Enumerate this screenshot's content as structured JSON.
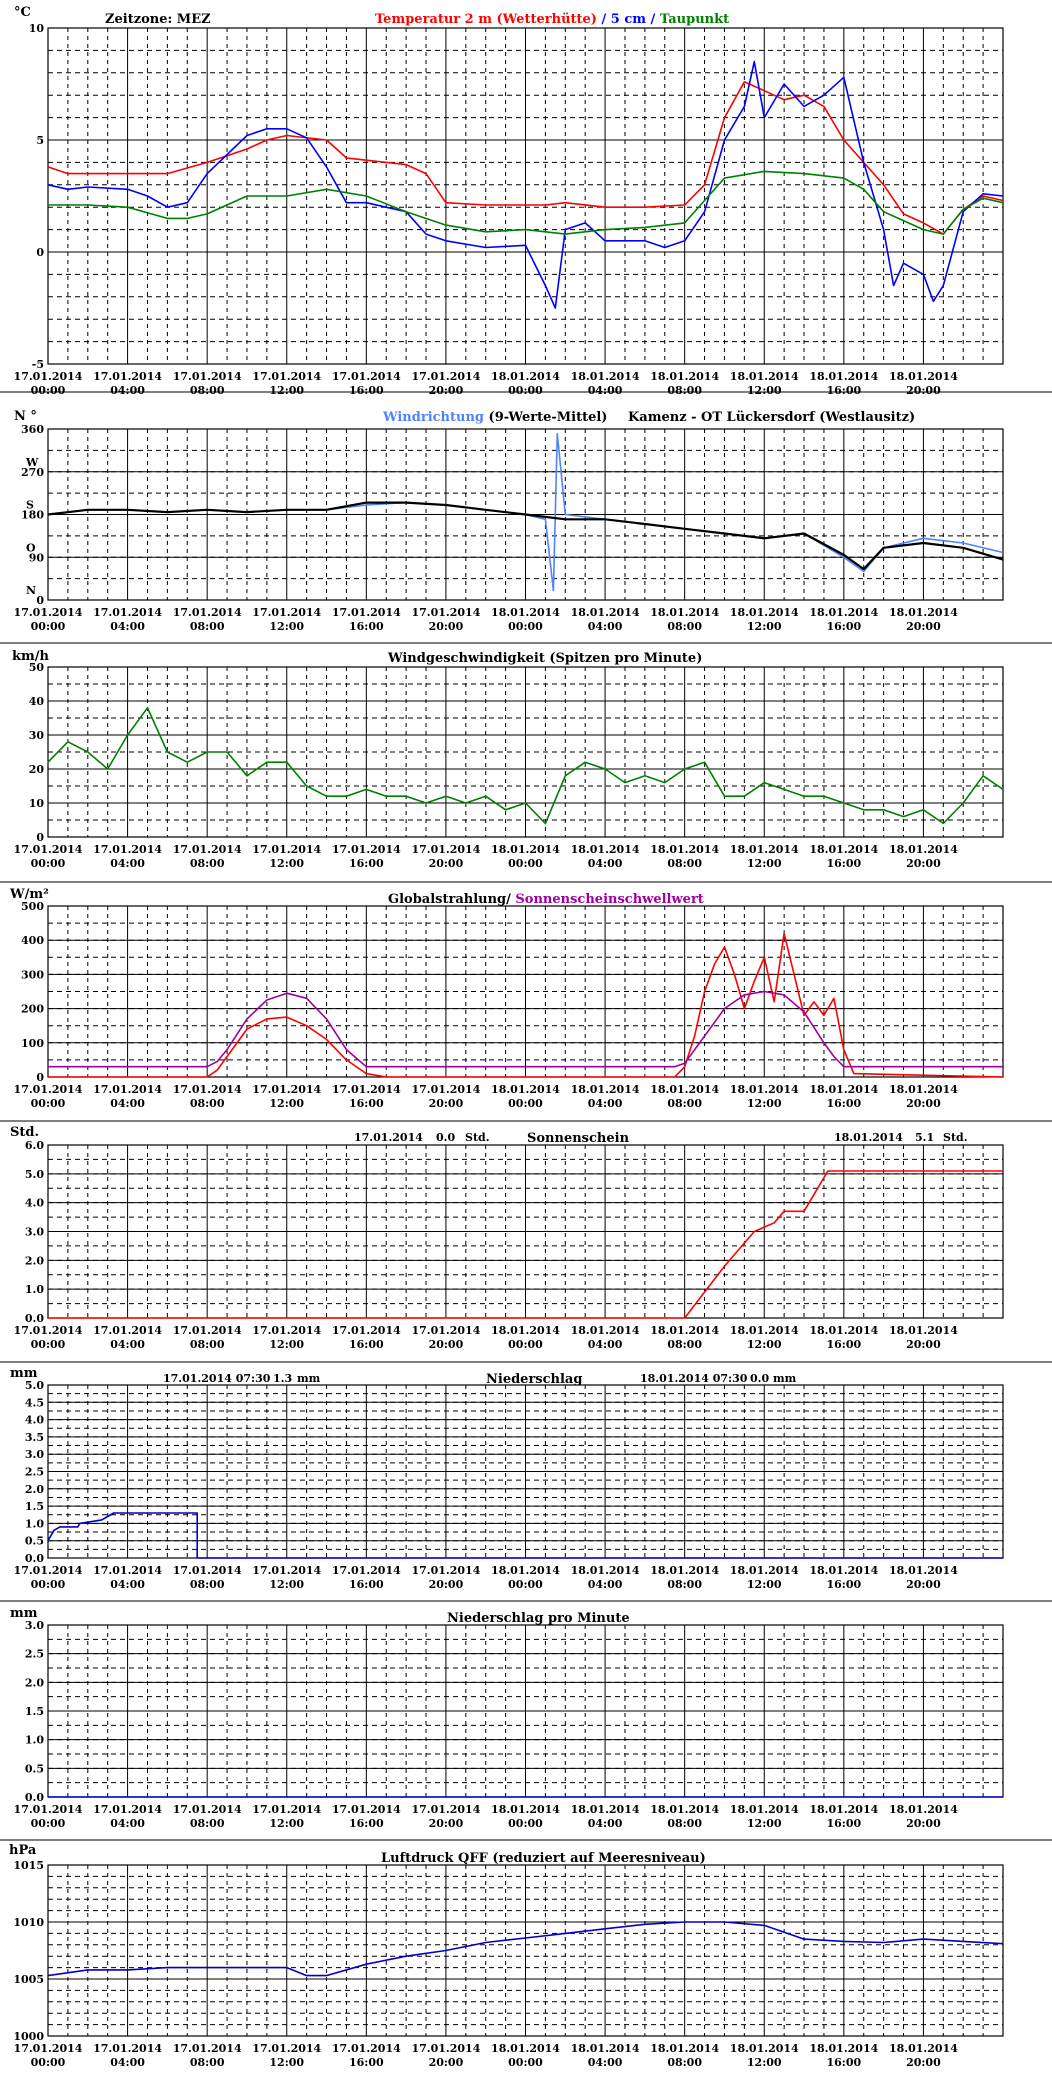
{
  "x_ticks": [
    {
      "date": "17.01.2014",
      "time": "00:00"
    },
    {
      "date": "17.01.2014",
      "time": "04:00"
    },
    {
      "date": "17.01.2014",
      "time": "08:00"
    },
    {
      "date": "17.01.2014",
      "time": "12:00"
    },
    {
      "date": "17.01.2014",
      "time": "16:00"
    },
    {
      "date": "17.01.2014",
      "time": "20:00"
    },
    {
      "date": "18.01.2014",
      "time": "00:00"
    },
    {
      "date": "18.01.2014",
      "time": "04:00"
    },
    {
      "date": "18.01.2014",
      "time": "08:00"
    },
    {
      "date": "18.01.2014",
      "time": "12:00"
    },
    {
      "date": "18.01.2014",
      "time": "16:00"
    },
    {
      "date": "18.01.2014",
      "time": "20:00"
    }
  ],
  "colors": {
    "grid": "#000000",
    "red": "#ff0000",
    "blue": "#0000ff",
    "green": "#008000",
    "windblue": "#4f83ff",
    "purple": "#a000a0",
    "navy": "#0000cc"
  },
  "panels": {
    "temp": {
      "unit": "°C",
      "zone_label": "Zeitzone: MEZ",
      "title_red": "Temperatur 2 m (Wetterhütte)",
      "title_sep": " / ",
      "title_blue": "5 cm",
      "title_sep2": " / ",
      "title_green": "Taupunkt",
      "y_ticks": [
        "10",
        "5",
        "0",
        "-5"
      ]
    },
    "wdir": {
      "unit": "N °",
      "title_blue": "Windrichtung",
      "title_black": "(9-Werte-Mittel)",
      "station": "Kamenz - OT Lückersdorf (Westlausitz)",
      "y_ticks": [
        "360",
        "270",
        "180",
        "90",
        "0"
      ],
      "dir_labels": [
        "W",
        "S",
        "O",
        "N"
      ]
    },
    "wspeed": {
      "unit": "km/h",
      "title": "Windgeschwindigkeit (Spitzen pro Minute)",
      "y_ticks": [
        "50",
        "40",
        "30",
        "20",
        "10",
        "0"
      ]
    },
    "rad": {
      "unit": "W/m²",
      "title_black": "Globalstrahlung/",
      "title_purple": "Sonnenscheinschwellwert",
      "y_ticks": [
        "500",
        "400",
        "300",
        "200",
        "100",
        "0"
      ]
    },
    "sun": {
      "unit": "Std.",
      "title": "Sonnenschein",
      "date1": "17.01.2014",
      "val1": "0.0",
      "unit1": "Std.",
      "date2": "18.01.2014",
      "val2": "5.1",
      "unit2": "Std.",
      "y_ticks": [
        "6.0",
        "5.0",
        "4.0",
        "3.0",
        "2.0",
        "1.0",
        "0.0"
      ]
    },
    "precip": {
      "unit": "mm",
      "title": "Niederschlag",
      "date1": "17.01.2014 07:30",
      "val1": "1.3",
      "unit1": "mm",
      "date2": "18.01.2014 07:30",
      "val2": "0.0",
      "unit2": "mm",
      "y_ticks": [
        "5.0",
        "4.5",
        "4.0",
        "3.5",
        "3.0",
        "2.5",
        "2.0",
        "1.5",
        "1.0",
        "0.5",
        "0.0"
      ]
    },
    "precipmin": {
      "unit": "mm",
      "title": "Niederschlag pro Minute",
      "y_ticks": [
        "3.0",
        "2.5",
        "2.0",
        "1.5",
        "1.0",
        "0.5",
        "0.0"
      ]
    },
    "press": {
      "unit": "hPa",
      "title": "Luftdruck QFF (reduziert auf Meeresniveau)",
      "y_ticks": [
        "1015",
        "1010",
        "1005",
        "1000"
      ]
    }
  },
  "chart_data": [
    {
      "type": "line",
      "title": "Temperatur 2 m (Wetterhütte) / 5 cm / Taupunkt",
      "ylabel": "°C",
      "x_unit": "hours since 17.01.2014 00:00",
      "xlim": [
        0,
        48
      ],
      "ylim": [
        -5,
        10
      ],
      "series": [
        {
          "name": "Temperatur 2 m (Wetterhütte)",
          "color": "#ff0000",
          "x": [
            0,
            1,
            2,
            4,
            6,
            8,
            10,
            11,
            12,
            14,
            15,
            16,
            18,
            19,
            20,
            22,
            24,
            25,
            26,
            28,
            30,
            32,
            33,
            34,
            35,
            36,
            37,
            38,
            39,
            40,
            41,
            42,
            43,
            44,
            45,
            46,
            47,
            48
          ],
          "y": [
            3.8,
            3.5,
            3.5,
            3.5,
            3.5,
            4.0,
            4.6,
            5.0,
            5.2,
            5.0,
            4.2,
            4.1,
            3.9,
            3.5,
            2.2,
            2.1,
            2.1,
            2.1,
            2.2,
            2.0,
            2.0,
            2.1,
            3.0,
            6.0,
            7.6,
            7.2,
            6.8,
            7.0,
            6.5,
            5.0,
            4.0,
            3.0,
            1.7,
            1.3,
            0.8,
            1.9,
            2.5,
            2.3
          ]
        },
        {
          "name": "5 cm",
          "color": "#0000ff",
          "x": [
            0,
            1,
            2,
            4,
            5,
            6,
            7,
            8,
            10,
            11,
            12,
            13,
            14,
            15,
            16,
            18,
            19,
            20,
            22,
            24,
            25,
            25.5,
            26,
            27,
            28,
            30,
            31,
            32,
            33,
            34,
            35,
            35.5,
            36,
            37,
            38,
            39,
            40,
            41,
            42,
            42.5,
            43,
            44,
            44.5,
            45,
            46,
            47,
            48
          ],
          "y": [
            3.0,
            2.8,
            2.9,
            2.8,
            2.5,
            2.0,
            2.2,
            3.5,
            5.2,
            5.5,
            5.5,
            5.1,
            3.8,
            2.2,
            2.2,
            1.8,
            0.8,
            0.5,
            0.2,
            0.3,
            -1.5,
            -2.5,
            1.0,
            1.3,
            0.5,
            0.5,
            0.2,
            0.5,
            1.8,
            5.0,
            6.5,
            8.5,
            6.0,
            7.5,
            6.5,
            7.0,
            7.8,
            4.0,
            1.0,
            -1.5,
            -0.5,
            -1.0,
            -2.2,
            -1.5,
            1.8,
            2.6,
            2.5
          ]
        },
        {
          "name": "Taupunkt",
          "color": "#008000",
          "x": [
            0,
            2,
            4,
            6,
            7,
            8,
            10,
            12,
            14,
            16,
            18,
            20,
            22,
            24,
            26,
            28,
            30,
            32,
            33,
            34,
            36,
            38,
            40,
            41,
            42,
            44,
            45,
            46,
            47,
            48
          ],
          "y": [
            2.1,
            2.1,
            2.0,
            1.5,
            1.5,
            1.7,
            2.5,
            2.5,
            2.8,
            2.5,
            1.8,
            1.2,
            0.9,
            1.0,
            0.8,
            1.0,
            1.1,
            1.3,
            2.3,
            3.3,
            3.6,
            3.5,
            3.3,
            2.8,
            1.8,
            1.0,
            0.8,
            1.9,
            2.4,
            2.2
          ]
        }
      ]
    },
    {
      "type": "line",
      "title": "Windrichtung (9-Werte-Mittel)",
      "ylabel": "°",
      "x_unit": "hours since 17.01.2014 00:00",
      "xlim": [
        0,
        48
      ],
      "ylim": [
        0,
        360
      ],
      "series": [
        {
          "name": "Windrichtung",
          "color": "#4f83ff",
          "x": [
            0,
            2,
            4,
            6,
            8,
            10,
            12,
            14,
            16,
            18,
            20,
            22,
            24,
            25,
            25.4,
            25.6,
            26,
            28,
            30,
            32,
            34,
            36,
            38,
            40,
            41,
            42,
            44,
            46,
            48
          ],
          "y": [
            180,
            190,
            190,
            185,
            190,
            185,
            190,
            190,
            200,
            205,
            200,
            190,
            180,
            170,
            20,
            350,
            180,
            170,
            160,
            150,
            140,
            130,
            140,
            90,
            60,
            110,
            130,
            120,
            100
          ]
        },
        {
          "name": "(9-Werte-Mittel)",
          "color": "#000000",
          "x": [
            0,
            2,
            4,
            6,
            8,
            10,
            12,
            14,
            16,
            18,
            20,
            22,
            24,
            25,
            26,
            28,
            30,
            32,
            34,
            36,
            38,
            40,
            41,
            42,
            44,
            46,
            48
          ],
          "y": [
            180,
            190,
            190,
            185,
            190,
            185,
            190,
            190,
            205,
            205,
            200,
            190,
            180,
            175,
            170,
            170,
            160,
            150,
            140,
            130,
            140,
            95,
            65,
            110,
            120,
            110,
            85
          ]
        }
      ]
    },
    {
      "type": "line",
      "title": "Windgeschwindigkeit (Spitzen pro Minute)",
      "ylabel": "km/h",
      "x_unit": "hours since 17.01.2014 00:00",
      "xlim": [
        0,
        48
      ],
      "ylim": [
        0,
        50
      ],
      "series": [
        {
          "name": "Windgeschwindigkeit",
          "color": "#008000",
          "x": [
            0,
            1,
            2,
            3,
            4,
            5,
            6,
            7,
            8,
            9,
            10,
            11,
            12,
            13,
            14,
            15,
            16,
            17,
            18,
            19,
            20,
            21,
            22,
            23,
            24,
            25,
            26,
            27,
            28,
            29,
            30,
            31,
            32,
            33,
            34,
            35,
            36,
            37,
            38,
            39,
            40,
            41,
            42,
            43,
            44,
            45,
            46,
            47,
            48
          ],
          "y": [
            22,
            28,
            25,
            20,
            30,
            38,
            25,
            22,
            25,
            25,
            18,
            22,
            22,
            15,
            12,
            12,
            14,
            12,
            12,
            10,
            12,
            10,
            12,
            8,
            10,
            4,
            18,
            22,
            20,
            16,
            18,
            16,
            20,
            22,
            12,
            12,
            16,
            14,
            12,
            12,
            10,
            8,
            8,
            6,
            8,
            4,
            10,
            18,
            14
          ]
        }
      ]
    },
    {
      "type": "line",
      "title": "Globalstrahlung/ Sonnenscheinschwellwert",
      "ylabel": "W/m²",
      "x_unit": "hours since 17.01.2014 00:00",
      "xlim": [
        0,
        48
      ],
      "ylim": [
        0,
        500
      ],
      "series": [
        {
          "name": "Globalstrahlung",
          "color": "#ff0000",
          "x": [
            0,
            8,
            8.5,
            9,
            10,
            11,
            12,
            13,
            14,
            15,
            16,
            17,
            31.5,
            32,
            32.5,
            33,
            33.5,
            34,
            34.5,
            35,
            35.5,
            36,
            36.5,
            37,
            37.5,
            38,
            38.5,
            39,
            39.5,
            40,
            40.5,
            48
          ],
          "y": [
            0,
            0,
            20,
            60,
            140,
            170,
            175,
            150,
            110,
            50,
            10,
            0,
            0,
            30,
            120,
            250,
            330,
            380,
            300,
            200,
            280,
            350,
            220,
            420,
            300,
            180,
            220,
            180,
            230,
            80,
            10,
            0
          ]
        },
        {
          "name": "Sonnenscheinschwellwert",
          "color": "#a000a0",
          "x": [
            0,
            8,
            8.5,
            9,
            10,
            11,
            12,
            13,
            14,
            15,
            16,
            31.5,
            32,
            33,
            34,
            35,
            36,
            37,
            38,
            39,
            39.5,
            40,
            48
          ],
          "y": [
            30,
            30,
            45,
            80,
            170,
            225,
            245,
            230,
            170,
            80,
            30,
            30,
            40,
            120,
            200,
            240,
            250,
            240,
            190,
            100,
            60,
            30,
            30
          ]
        }
      ]
    },
    {
      "type": "line",
      "title": "Sonnenschein",
      "ylabel": "Std.",
      "x_unit": "hours since 17.01.2014 00:00",
      "xlim": [
        0,
        48
      ],
      "ylim": [
        0,
        6
      ],
      "series": [
        {
          "name": "Sonnenschein",
          "color": "#ff0000",
          "x": [
            0,
            32,
            34,
            35.5,
            36.5,
            37,
            38,
            39.2,
            40,
            48
          ],
          "y": [
            0,
            0,
            1.8,
            3.0,
            3.3,
            3.7,
            3.7,
            5.1,
            5.1,
            5.1
          ]
        }
      ]
    },
    {
      "type": "line",
      "title": "Niederschlag",
      "ylabel": "mm",
      "x_unit": "hours since 17.01.2014 00:00",
      "xlim": [
        0,
        48
      ],
      "ylim": [
        0,
        5
      ],
      "series": [
        {
          "name": "Niederschlag",
          "color": "#0000cc",
          "x": [
            0,
            0.3,
            0.6,
            1.5,
            1.6,
            2.7,
            3.0,
            3.3,
            7.5,
            7.5,
            48
          ],
          "y": [
            0.5,
            0.8,
            0.9,
            0.9,
            1.0,
            1.1,
            1.2,
            1.3,
            1.3,
            0,
            0
          ]
        }
      ]
    },
    {
      "type": "line",
      "title": "Niederschlag pro Minute",
      "ylabel": "mm",
      "x_unit": "hours since 17.01.2014 00:00",
      "xlim": [
        0,
        48
      ],
      "ylim": [
        0,
        3
      ],
      "series": [
        {
          "name": "Niederschlag pro Minute",
          "color": "#0000cc",
          "x": [
            0,
            48
          ],
          "y": [
            0,
            0
          ]
        }
      ]
    },
    {
      "type": "line",
      "title": "Luftdruck QFF (reduziert auf Meeresniveau)",
      "ylabel": "hPa",
      "x_unit": "hours since 17.01.2014 00:00",
      "xlim": [
        0,
        48
      ],
      "ylim": [
        1000,
        1015
      ],
      "series": [
        {
          "name": "Luftdruck QFF",
          "color": "#0000cc",
          "x": [
            0,
            2,
            4,
            6,
            8,
            10,
            12,
            13,
            14,
            16,
            18,
            20,
            22,
            24,
            26,
            28,
            30,
            32,
            34,
            36,
            38,
            40,
            42,
            44,
            46,
            48
          ],
          "y": [
            1005.3,
            1005.8,
            1005.8,
            1006.0,
            1006.0,
            1006.0,
            1006.0,
            1005.3,
            1005.3,
            1006.3,
            1007.0,
            1007.5,
            1008.2,
            1008.6,
            1009.0,
            1009.4,
            1009.8,
            1010.0,
            1010.0,
            1009.7,
            1008.5,
            1008.3,
            1008.2,
            1008.5,
            1008.3,
            1008.1
          ]
        }
      ]
    }
  ]
}
